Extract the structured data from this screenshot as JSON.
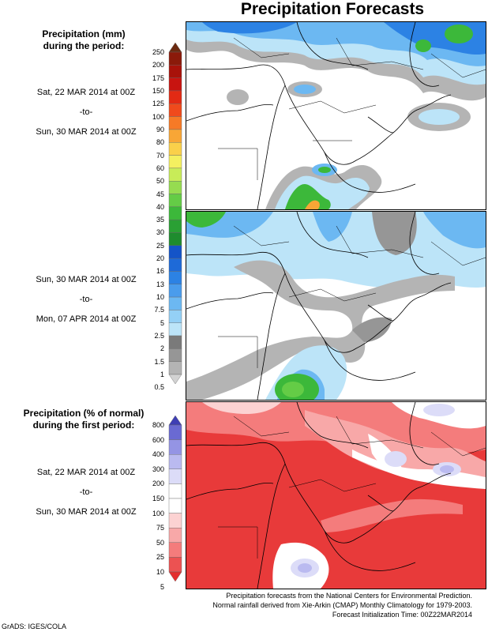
{
  "title": "Precipitation Forecasts",
  "precip_heading": [
    "Precipitation (mm)",
    "during the period:"
  ],
  "period1": {
    "start": "Sat, 22 MAR 2014 at 00Z",
    "sep": "-to-",
    "end": "Sun, 30 MAR 2014 at 00Z"
  },
  "period2": {
    "start": "Sun, 30 MAR 2014 at 00Z",
    "sep": "-to-",
    "end": "Mon, 07 APR 2014 at 00Z"
  },
  "pct_heading": [
    "Precipitation (% of normal)",
    "during the first period:"
  ],
  "period3": {
    "start": "Sat, 22 MAR 2014 at 00Z",
    "sep": "-to-",
    "end": "Sun, 30 MAR 2014 at 00Z"
  },
  "mm_scale": {
    "ticks": [
      "250",
      "200",
      "175",
      "150",
      "125",
      "100",
      "90",
      "80",
      "70",
      "60",
      "50",
      "45",
      "40",
      "35",
      "30",
      "25",
      "20",
      "16",
      "13",
      "10",
      "7.5",
      "5",
      "2.5",
      "2",
      "1.5",
      "1",
      "0.5"
    ],
    "colors": [
      "#6b2a10",
      "#8b1a0a",
      "#a8120a",
      "#c81410",
      "#e22a14",
      "#f04a1c",
      "#f67a26",
      "#f8a636",
      "#fad04a",
      "#f4f060",
      "#c8ec58",
      "#96dc50",
      "#64cc46",
      "#3cb83a",
      "#2aa034",
      "#1e8c2e",
      "#1454c8",
      "#1e6ad8",
      "#2c82e4",
      "#4a9cec",
      "#6cb8f2",
      "#94d0f6",
      "#bce4f8",
      "#7a7a7a",
      "#969696",
      "#b4b4b4",
      "#d2d2d2"
    ]
  },
  "pct_scale": {
    "ticks": [
      "800",
      "600",
      "400",
      "300",
      "200",
      "150",
      "100",
      "75",
      "50",
      "25",
      "10",
      "5"
    ],
    "colors": [
      "#3f3fb4",
      "#6a6ad2",
      "#9494e4",
      "#babaf0",
      "#dcdcf8",
      "#ffffff",
      "#ffffff",
      "#fcd2d2",
      "#f8a8a8",
      "#f47c7c",
      "#ec5252",
      "#e42e2e"
    ]
  },
  "footer": [
    "Precipitation forecasts from the National Centers for Environmental Prediction.",
    "Normal rainfall derived from Xie-Arkin (CMAP) Monthly Climatology for 1979-2003.",
    "Forecast Initialization Time: 00Z22MAR2014"
  ],
  "credit": "GrADS: IGES/COLA"
}
